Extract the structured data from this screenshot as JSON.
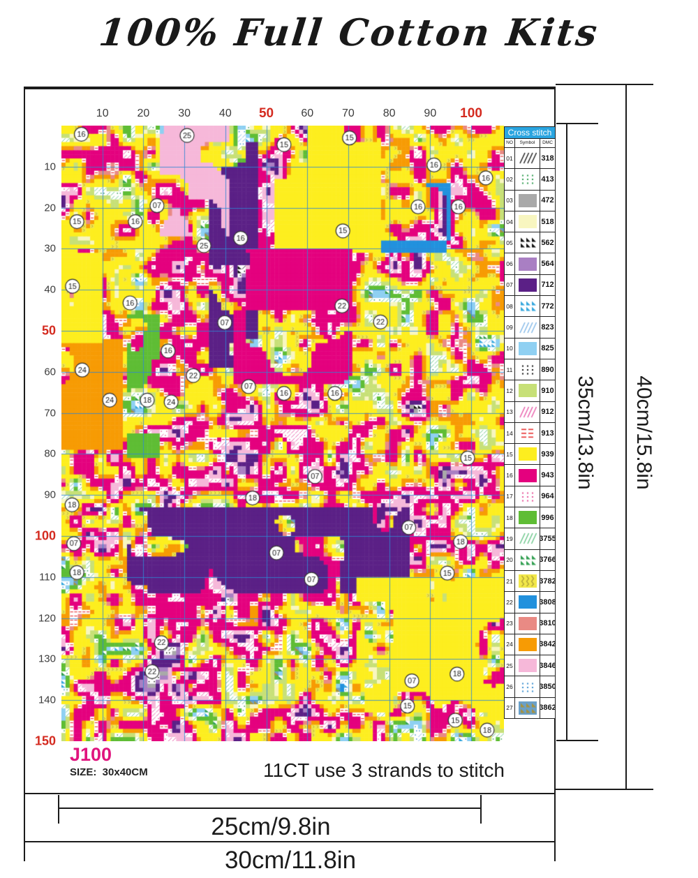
{
  "title": "100% Full Cotton Kits",
  "product": {
    "code": "J100",
    "size_label": "SIZE:  30x40CM",
    "stitch_note": "11CT use 3 strands to stitch",
    "dim_inner_width": "25cm/9.8in",
    "dim_outer_width": "30cm/11.8in",
    "dim_inner_height": "35cm/13.8in",
    "dim_outer_height": "40cm/15.8in"
  },
  "colors": {
    "accent_magenta": "#e0147e",
    "tick_red": "#d42a1f",
    "axis_gray": "#3c3c3c",
    "legend_header_blue": "#2aa5e0",
    "grid_blue": "#2f86d2"
  },
  "axes": {
    "top": [
      {
        "label": "10",
        "red": false
      },
      {
        "label": "20",
        "red": false
      },
      {
        "label": "30",
        "red": false
      },
      {
        "label": "40",
        "red": false
      },
      {
        "label": "50",
        "red": true
      },
      {
        "label": "60",
        "red": false
      },
      {
        "label": "70",
        "red": false
      },
      {
        "label": "80",
        "red": false
      },
      {
        "label": "90",
        "red": false
      },
      {
        "label": "100",
        "red": true
      }
    ],
    "left": [
      {
        "label": "10",
        "red": false
      },
      {
        "label": "20",
        "red": false
      },
      {
        "label": "30",
        "red": false
      },
      {
        "label": "40",
        "red": false
      },
      {
        "label": "50",
        "red": true
      },
      {
        "label": "60",
        "red": false
      },
      {
        "label": "70",
        "red": false
      },
      {
        "label": "80",
        "red": false
      },
      {
        "label": "90",
        "red": false
      },
      {
        "label": "100",
        "red": true
      },
      {
        "label": "110",
        "red": false
      },
      {
        "label": "120",
        "red": false
      },
      {
        "label": "130",
        "red": false
      },
      {
        "label": "140",
        "red": false
      },
      {
        "label": "150",
        "red": true
      }
    ]
  },
  "legend": {
    "header": "Cross stitch",
    "columns": [
      "NO",
      "Symbol",
      "DMC"
    ],
    "rows": [
      {
        "no": "01",
        "dmc": "318",
        "type": "hatch",
        "fg": "#1a1a1a",
        "bg": "#ffffff"
      },
      {
        "no": "02",
        "dmc": "413",
        "type": "dots",
        "fg": "#2f9e4f",
        "bg": "#ffffff"
      },
      {
        "no": "03",
        "dmc": "472",
        "type": "solid",
        "fg": "#a9a9a9",
        "bg": "#a9a9a9"
      },
      {
        "no": "04",
        "dmc": "518",
        "type": "solid",
        "fg": "#f8f6c0",
        "bg": "#f8f6c0"
      },
      {
        "no": "05",
        "dmc": "562",
        "type": "tri",
        "fg": "#111111",
        "bg": "#ffffff"
      },
      {
        "no": "06",
        "dmc": "564",
        "type": "solid",
        "fg": "#a97fc3",
        "bg": "#a97fc3"
      },
      {
        "no": "07",
        "dmc": "712",
        "type": "solid",
        "fg": "#5b2086",
        "bg": "#5b2086"
      },
      {
        "no": "08",
        "dmc": "772",
        "type": "tri",
        "fg": "#33a6dd",
        "bg": "#ffffff"
      },
      {
        "no": "09",
        "dmc": "823",
        "type": "hatch",
        "fg": "#7fb7e8",
        "bg": "#ffffff"
      },
      {
        "no": "10",
        "dmc": "825",
        "type": "solid",
        "fg": "#8fd0f2",
        "bg": "#8fd0f2"
      },
      {
        "no": "11",
        "dmc": "890",
        "type": "dots",
        "fg": "#111111",
        "bg": "#ffffff"
      },
      {
        "no": "12",
        "dmc": "910",
        "type": "solid",
        "fg": "#c7e077",
        "bg": "#c7e077"
      },
      {
        "no": "13",
        "dmc": "912",
        "type": "hatch",
        "fg": "#e858a8",
        "bg": "#ffffff"
      },
      {
        "no": "14",
        "dmc": "913",
        "type": "dash",
        "fg": "#e83030",
        "bg": "#ffffff"
      },
      {
        "no": "15",
        "dmc": "939",
        "type": "solid",
        "fg": "#fdee1f",
        "bg": "#fdee1f"
      },
      {
        "no": "16",
        "dmc": "943",
        "type": "solid",
        "fg": "#e4017e",
        "bg": "#e4017e"
      },
      {
        "no": "17",
        "dmc": "964",
        "type": "dots",
        "fg": "#e8549a",
        "bg": "#ffffff"
      },
      {
        "no": "18",
        "dmc": "996",
        "type": "solid",
        "fg": "#5fbd35",
        "bg": "#5fbd35"
      },
      {
        "no": "19",
        "dmc": "3755",
        "type": "hatch",
        "fg": "#66c687",
        "bg": "#ffffff"
      },
      {
        "no": "20",
        "dmc": "3766",
        "type": "tri",
        "fg": "#2f9e4f",
        "bg": "#ffffff"
      },
      {
        "no": "21",
        "dmc": "3782",
        "type": "squiggle",
        "fg": "#b0a23a",
        "bg": "#f2e84a"
      },
      {
        "no": "22",
        "dmc": "3808",
        "type": "solid",
        "fg": "#2291dd",
        "bg": "#2291dd"
      },
      {
        "no": "23",
        "dmc": "3810",
        "type": "solid",
        "fg": "#e98a84",
        "bg": "#e98a84"
      },
      {
        "no": "24",
        "dmc": "3842",
        "type": "solid",
        "fg": "#f79b04",
        "bg": "#f79b04"
      },
      {
        "no": "25",
        "dmc": "3846",
        "type": "solid",
        "fg": "#f6b8d9",
        "bg": "#f6b8d9"
      },
      {
        "no": "26",
        "dmc": "3850",
        "type": "dots",
        "fg": "#3a8fd0",
        "bg": "#ffffff"
      },
      {
        "no": "27",
        "dmc": "3862",
        "type": "tri",
        "fg": "#a8923c",
        "bg": "#6aa0c8"
      }
    ]
  },
  "pattern": {
    "cols": 108,
    "rows": 150,
    "markers": [
      {
        "label": "16",
        "x": 0.045,
        "y": 0.014
      },
      {
        "label": "25",
        "x": 0.284,
        "y": 0.016
      },
      {
        "label": "15",
        "x": 0.503,
        "y": 0.031
      },
      {
        "label": "15",
        "x": 0.651,
        "y": 0.02
      },
      {
        "label": "16",
        "x": 0.842,
        "y": 0.064
      },
      {
        "label": "16",
        "x": 0.959,
        "y": 0.085
      },
      {
        "label": "07",
        "x": 0.216,
        "y": 0.13
      },
      {
        "label": "16",
        "x": 0.167,
        "y": 0.156
      },
      {
        "label": "15",
        "x": 0.035,
        "y": 0.156
      },
      {
        "label": "25",
        "x": 0.322,
        "y": 0.195
      },
      {
        "label": "16",
        "x": 0.405,
        "y": 0.183
      },
      {
        "label": "15",
        "x": 0.636,
        "y": 0.171
      },
      {
        "label": "16",
        "x": 0.806,
        "y": 0.132
      },
      {
        "label": "16",
        "x": 0.897,
        "y": 0.132
      },
      {
        "label": "15",
        "x": 0.025,
        "y": 0.261
      },
      {
        "label": "16",
        "x": 0.155,
        "y": 0.288
      },
      {
        "label": "07",
        "x": 0.369,
        "y": 0.32
      },
      {
        "label": "22",
        "x": 0.634,
        "y": 0.293
      },
      {
        "label": "22",
        "x": 0.721,
        "y": 0.319
      },
      {
        "label": "16",
        "x": 0.241,
        "y": 0.366
      },
      {
        "label": "24",
        "x": 0.047,
        "y": 0.397
      },
      {
        "label": "22",
        "x": 0.298,
        "y": 0.406
      },
      {
        "label": "24",
        "x": 0.109,
        "y": 0.446
      },
      {
        "label": "18",
        "x": 0.194,
        "y": 0.446
      },
      {
        "label": "24",
        "x": 0.248,
        "y": 0.449
      },
      {
        "label": "07",
        "x": 0.423,
        "y": 0.424
      },
      {
        "label": "16",
        "x": 0.503,
        "y": 0.435
      },
      {
        "label": "16",
        "x": 0.618,
        "y": 0.435
      },
      {
        "label": "07",
        "x": 0.573,
        "y": 0.57
      },
      {
        "label": "15",
        "x": 0.918,
        "y": 0.54
      },
      {
        "label": "18",
        "x": 0.432,
        "y": 0.605
      },
      {
        "label": "18",
        "x": 0.024,
        "y": 0.616
      },
      {
        "label": "07",
        "x": 0.785,
        "y": 0.653
      },
      {
        "label": "07",
        "x": 0.028,
        "y": 0.679
      },
      {
        "label": "18",
        "x": 0.902,
        "y": 0.676
      },
      {
        "label": "07",
        "x": 0.486,
        "y": 0.694
      },
      {
        "label": "18",
        "x": 0.035,
        "y": 0.726
      },
      {
        "label": "15",
        "x": 0.872,
        "y": 0.727
      },
      {
        "label": "07",
        "x": 0.565,
        "y": 0.737
      },
      {
        "label": "22",
        "x": 0.226,
        "y": 0.84
      },
      {
        "label": "22",
        "x": 0.205,
        "y": 0.887
      },
      {
        "label": "07",
        "x": 0.792,
        "y": 0.902
      },
      {
        "label": "18",
        "x": 0.894,
        "y": 0.891
      },
      {
        "label": "15",
        "x": 0.782,
        "y": 0.943
      },
      {
        "label": "15",
        "x": 0.89,
        "y": 0.966
      },
      {
        "label": "18",
        "x": 0.962,
        "y": 0.982
      }
    ],
    "render": {
      "seed": 11,
      "order": [
        "05",
        "01",
        "11",
        "03",
        "06",
        "07",
        "25",
        "13",
        "17",
        "16",
        "14",
        "23",
        "24",
        "21",
        "15",
        "04",
        "12",
        "19",
        "02",
        "18",
        "20",
        "27",
        "10",
        "26",
        "08",
        "09",
        "22"
      ],
      "weights": {
        "05": 0.008,
        "01": 0.022,
        "11": 0.015,
        "03": 0.018,
        "06": 0.035,
        "07": 0.07,
        "25": 0.065,
        "13": 0.03,
        "17": 0.018,
        "16": 0.15,
        "14": 0.025,
        "23": 0.012,
        "24": 0.05,
        "21": 0.015,
        "15": 0.14,
        "04": 0.02,
        "12": 0.05,
        "19": 0.025,
        "02": 0.018,
        "18": 0.05,
        "20": 0.01,
        "27": 0.008,
        "10": 0.04,
        "26": 0.022,
        "08": 0.025,
        "09": 0.035,
        "22": 0.054
      },
      "features": [
        {
          "c0": 16,
          "c1": 84,
          "r0": 93,
          "r1": 113,
          "id": "07",
          "th": 0.36,
          "sc": 6
        },
        {
          "c0": 0,
          "c1": 14,
          "r0": 52,
          "r1": 78,
          "id": "24",
          "th": 0.3,
          "sc": 7
        },
        {
          "c0": 16,
          "c1": 23,
          "r0": 46,
          "r1": 80,
          "id": "18",
          "th": 0.35,
          "sc": 6
        },
        {
          "c0": 36,
          "c1": 47,
          "r0": 4,
          "r1": 58,
          "id": "07",
          "th": 0.42,
          "sc": 6
        },
        {
          "c0": 52,
          "c1": 77,
          "r0": 0,
          "r1": 30,
          "id": "15",
          "th": 0.4,
          "sc": 8
        },
        {
          "c0": 0,
          "c1": 9,
          "r0": 24,
          "r1": 52,
          "id": "15",
          "th": 0.35,
          "sc": 7
        },
        {
          "c0": 42,
          "c1": 70,
          "r0": 30,
          "r1": 62,
          "id": "16",
          "th": 0.45,
          "sc": 8
        },
        {
          "c0": 72,
          "c1": 107,
          "r0": 110,
          "r1": 142,
          "id": "15",
          "th": 0.45,
          "sc": 7
        },
        {
          "c0": 24,
          "c1": 40,
          "r0": 0,
          "r1": 26,
          "id": "25",
          "th": 0.5,
          "sc": 7
        },
        {
          "c0": 78,
          "c1": 94,
          "r0": 14,
          "r1": 30,
          "id": "22",
          "th": 0.5,
          "sc": 6
        }
      ]
    }
  }
}
